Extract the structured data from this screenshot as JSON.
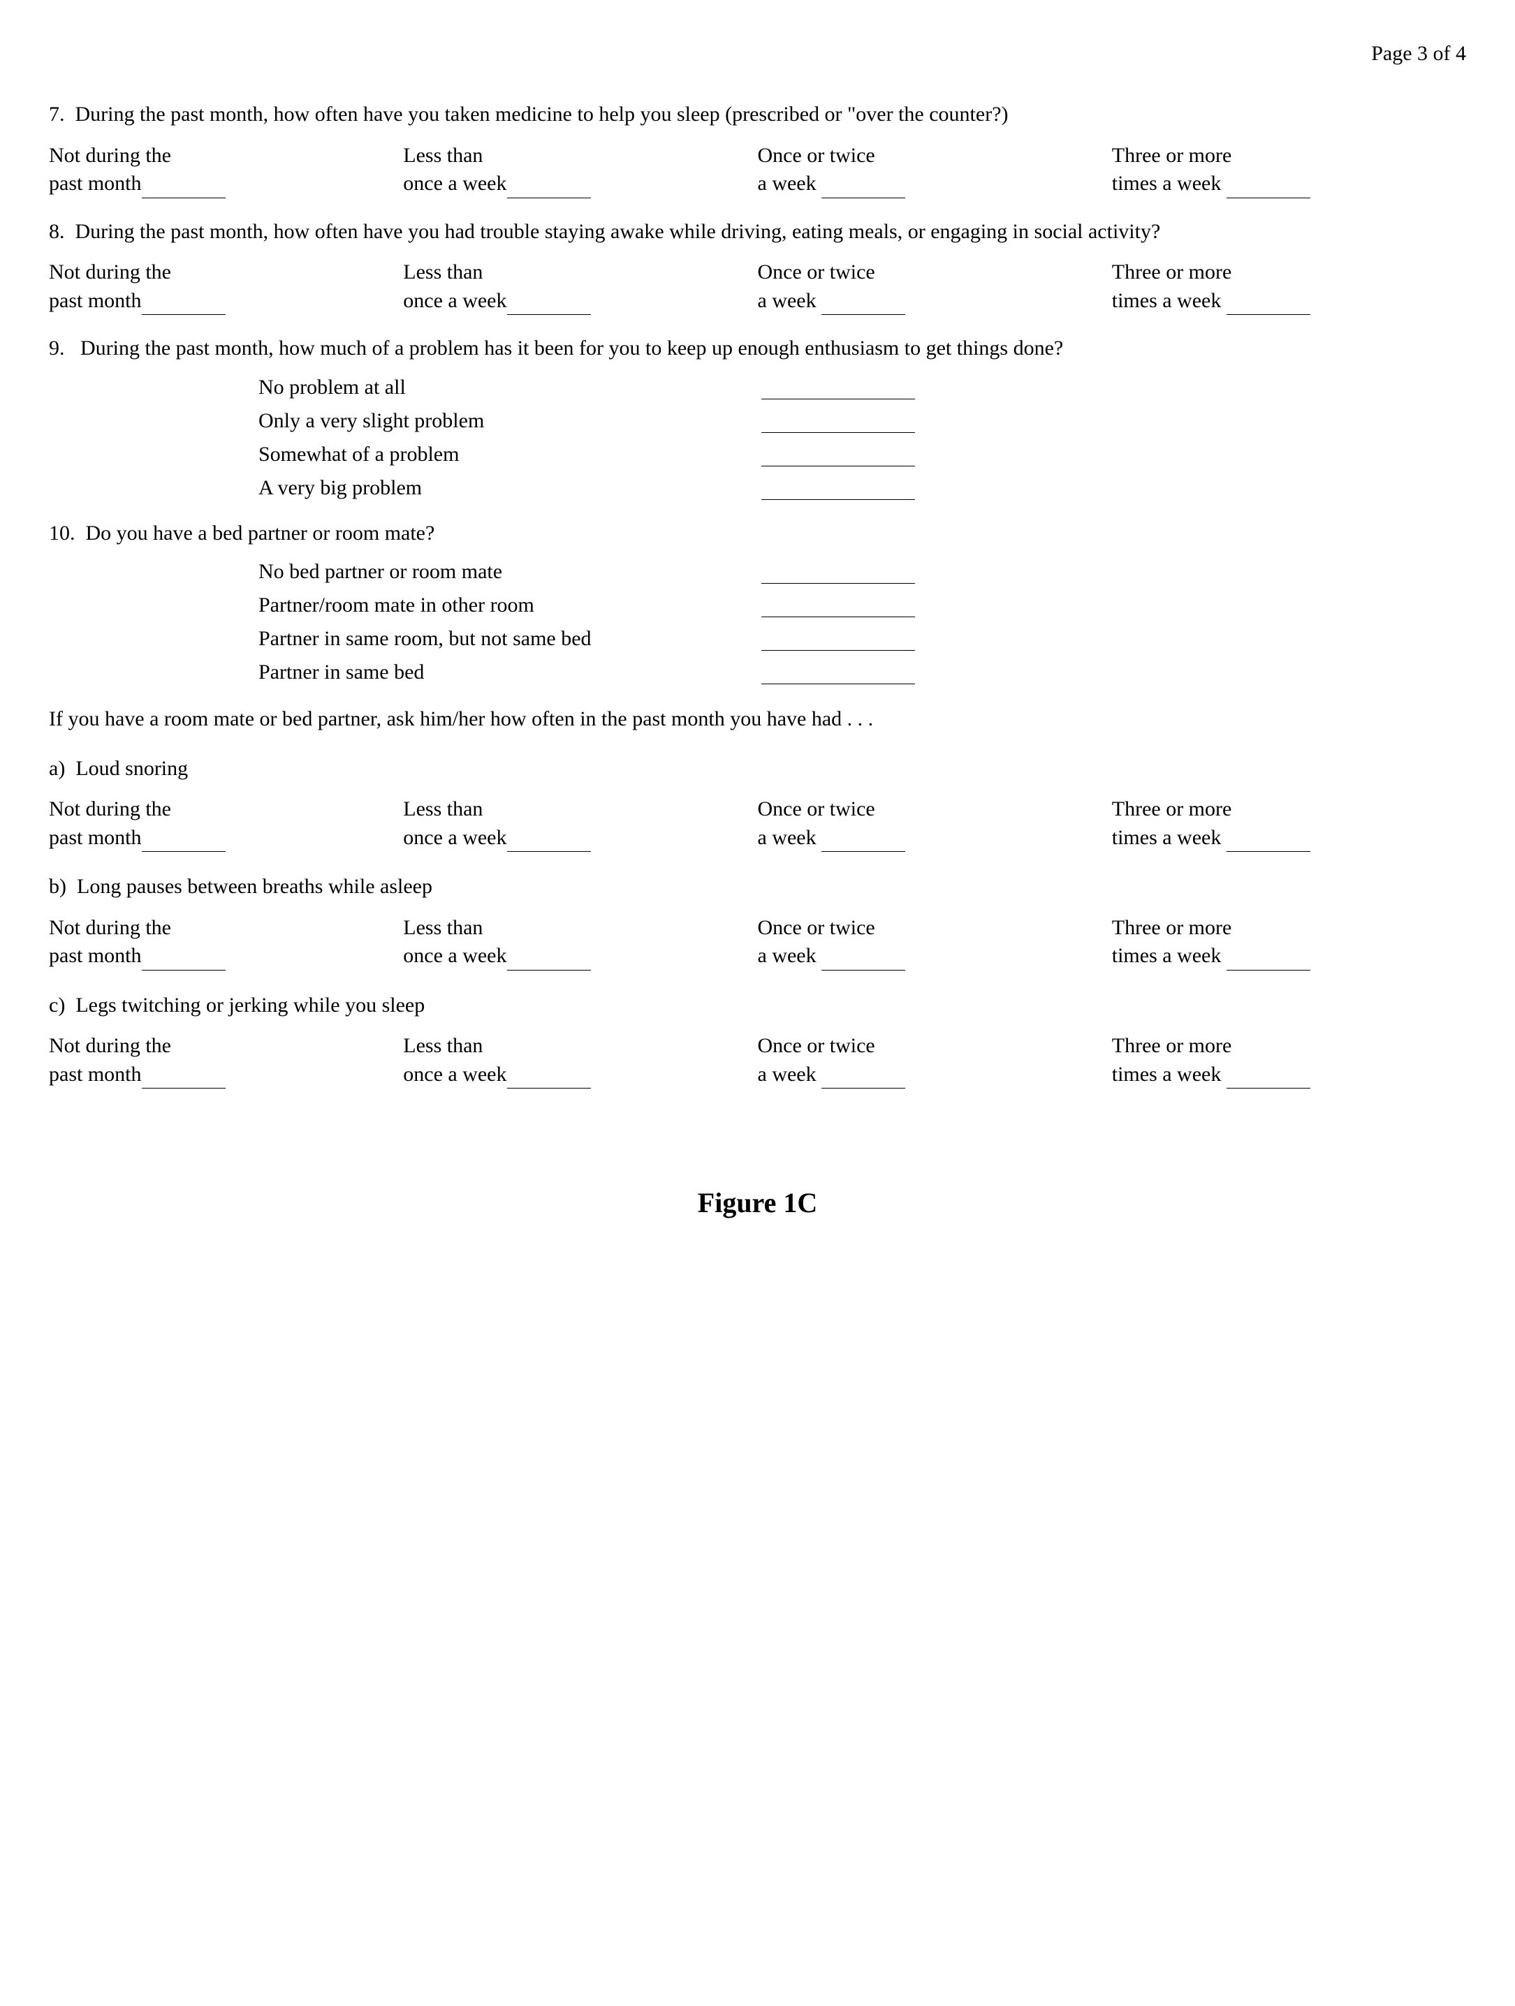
{
  "page_number": "Page 3 of 4",
  "freq_options": {
    "opt1_line1": "Not during the",
    "opt1_line2": "past month",
    "opt2_line1": "Less than",
    "opt2_line2": "once a week",
    "opt3_line1": "Once or twice",
    "opt3_line2": "a week",
    "opt4_line1": "Three or more",
    "opt4_line2": "times a week"
  },
  "q7": {
    "number": "7.",
    "text": "During the past month, how often have you taken medicine to help you sleep (prescribed or \"over the counter?)"
  },
  "q8": {
    "number": "8.",
    "text": "During the past month, how often have you had trouble staying awake while driving, eating meals, or engaging in social activity?"
  },
  "q9": {
    "number": "9.",
    "text": "During the past month, how much of a problem has it been for you to keep up enough enthusiasm to get things done?",
    "options": [
      "No problem at all",
      "Only a very slight problem",
      "Somewhat of a problem",
      "A very big problem"
    ]
  },
  "q10": {
    "number": "10.",
    "text": "Do you have a bed partner or room mate?",
    "options": [
      "No bed partner or room mate",
      "Partner/room mate in other room",
      "Partner in same room, but not same bed",
      "Partner in same bed"
    ]
  },
  "partner_intro": "If you have a room mate or bed partner, ask him/her how often in the past month you have had . . .",
  "sub_a": {
    "letter": "a)",
    "text": "Loud snoring"
  },
  "sub_b": {
    "letter": "b)",
    "text": "Long pauses between breaths while asleep"
  },
  "sub_c": {
    "letter": "c)",
    "text": "Legs twitching or jerking while you sleep"
  },
  "figure_caption": "Figure 1C"
}
